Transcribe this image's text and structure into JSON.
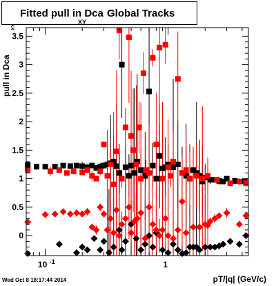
{
  "title": {
    "main": "Fitted pull in Dca",
    "sub": "XY",
    "rest": "Global Tracks"
  },
  "ylabel": {
    "main": "pull in Dca",
    "sub": "XY"
  },
  "xlabel": "pT/|q| (GeV/c)",
  "datestamp": "Wed Oct  8 18:17:44 2014",
  "chart_data": {
    "type": "scatter",
    "xscale": "log",
    "xlim": [
      0.07,
      4.5
    ],
    "ylim": [
      -0.35,
      3.65
    ],
    "x_tick_labels": [
      {
        "value": 0.1,
        "label": "10",
        "exp": "-1"
      },
      {
        "value": 1,
        "label": "1"
      }
    ],
    "y_ticks": [
      0,
      0.5,
      1,
      1.5,
      2,
      2.5,
      3,
      3.5
    ],
    "y_tick_labels": [
      "0",
      "0.5",
      "1",
      "1.5",
      "2",
      "2.5",
      "3",
      "3.5"
    ],
    "colors": {
      "series_black": "#000000",
      "series_red": "#ff0000"
    },
    "series": [
      {
        "marker": "square",
        "color": "black",
        "points": [
          [
            0.072,
            1.24
          ],
          [
            0.085,
            1.21
          ],
          [
            0.1,
            1.21
          ],
          [
            0.12,
            1.21
          ],
          [
            0.14,
            1.23
          ],
          [
            0.16,
            1.22
          ],
          [
            0.18,
            1.23
          ],
          [
            0.2,
            1.22
          ],
          [
            0.22,
            1.2
          ],
          [
            0.24,
            1.23
          ],
          [
            0.26,
            1.19
          ],
          [
            0.28,
            1.21
          ],
          [
            0.3,
            1.23
          ],
          [
            0.32,
            1.25
          ],
          [
            0.34,
            1.27
          ],
          [
            0.36,
            1.3
          ],
          [
            0.38,
            1.22
          ],
          [
            0.4,
            1.1
          ],
          [
            0.42,
            3.0
          ],
          [
            0.45,
            1.2
          ],
          [
            0.48,
            1.05
          ],
          [
            0.5,
            1.23
          ],
          [
            0.53,
            1.1
          ],
          [
            0.56,
            1.3
          ],
          [
            0.6,
            1.15
          ],
          [
            0.65,
            1.05
          ],
          [
            0.7,
            2.53
          ],
          [
            0.75,
            1.23
          ],
          [
            0.8,
            1.0
          ],
          [
            0.85,
            1.4
          ],
          [
            0.9,
            1.18
          ],
          [
            0.95,
            1.2
          ],
          [
            1.0,
            1.25
          ],
          [
            1.1,
            1.2
          ],
          [
            1.2,
            1.25
          ],
          [
            1.3,
            1.1
          ],
          [
            1.4,
            1.05
          ],
          [
            1.5,
            1.0
          ],
          [
            1.6,
            1.15
          ],
          [
            1.7,
            1.1
          ],
          [
            1.8,
            1.05
          ],
          [
            1.9,
            0.95
          ],
          [
            2.0,
            1.02
          ],
          [
            2.2,
            0.98
          ],
          [
            2.4,
            0.98
          ],
          [
            2.6,
            0.96
          ],
          [
            2.8,
            0.95
          ],
          [
            3.0,
            1.0
          ],
          [
            3.5,
            0.96
          ],
          [
            4.2,
            0.95
          ]
        ]
      },
      {
        "marker": "diamond",
        "color": "black",
        "points": [
          [
            0.072,
            -0.35
          ],
          [
            0.13,
            -0.15
          ],
          [
            0.18,
            -0.3
          ],
          [
            0.2,
            -0.2
          ],
          [
            0.22,
            -0.25
          ],
          [
            0.25,
            -0.05
          ],
          [
            0.28,
            -0.25
          ],
          [
            0.3,
            -0.1
          ],
          [
            0.33,
            -0.3
          ],
          [
            0.36,
            -0.2
          ],
          [
            0.4,
            0.1
          ],
          [
            0.42,
            -0.25
          ],
          [
            0.45,
            -0.1
          ],
          [
            0.5,
            0.2
          ],
          [
            0.55,
            -0.05
          ],
          [
            0.6,
            -0.25
          ],
          [
            0.65,
            -0.15
          ],
          [
            0.7,
            0.0
          ],
          [
            0.75,
            -0.2
          ],
          [
            0.8,
            0.05
          ],
          [
            0.9,
            -0.25
          ],
          [
            1.0,
            -0.3
          ],
          [
            1.1,
            -0.15
          ],
          [
            1.2,
            -0.25
          ],
          [
            1.3,
            -0.35
          ],
          [
            1.4,
            -0.3
          ],
          [
            1.5,
            -0.2
          ],
          [
            1.6,
            -0.2
          ],
          [
            1.7,
            -0.2
          ],
          [
            1.8,
            -0.25
          ],
          [
            2.0,
            -0.2
          ],
          [
            2.2,
            -0.2
          ],
          [
            2.4,
            -0.2
          ],
          [
            2.6,
            -0.18
          ],
          [
            2.8,
            -0.15
          ],
          [
            3.2,
            -0.1
          ],
          [
            3.8,
            -0.15
          ],
          [
            4.3,
            0.0
          ]
        ]
      },
      {
        "marker": "square",
        "color": "red",
        "points": [
          [
            0.072,
            1.15
          ],
          [
            0.11,
            1.13
          ],
          [
            0.13,
            1.15
          ],
          [
            0.15,
            1.1
          ],
          [
            0.17,
            1.13
          ],
          [
            0.2,
            1.11
          ],
          [
            0.22,
            1.15
          ],
          [
            0.24,
            1.05
          ],
          [
            0.26,
            1.0
          ],
          [
            0.28,
            1.13
          ],
          [
            0.3,
            1.6
          ],
          [
            0.32,
            1.05
          ],
          [
            0.34,
            1.25
          ],
          [
            0.36,
            0.9
          ],
          [
            0.38,
            1.48
          ],
          [
            0.4,
            3.6
          ],
          [
            0.42,
            1.0
          ],
          [
            0.45,
            1.9
          ],
          [
            0.48,
            3.48
          ],
          [
            0.5,
            1.75
          ],
          [
            0.52,
            1.5
          ],
          [
            0.55,
            1.25
          ],
          [
            0.58,
            1.9
          ],
          [
            0.6,
            1.0
          ],
          [
            0.63,
            2.85
          ],
          [
            0.66,
            1.15
          ],
          [
            0.7,
            1.1
          ],
          [
            0.75,
            3.12
          ],
          [
            0.8,
            1.6
          ],
          [
            0.85,
            3.3
          ],
          [
            0.9,
            1.0
          ],
          [
            0.95,
            3.35
          ],
          [
            1.0,
            1.2
          ],
          [
            1.05,
            1.05
          ],
          [
            1.1,
            1.3
          ],
          [
            1.2,
            2.75
          ],
          [
            1.3,
            1.1
          ],
          [
            1.4,
            1.15
          ],
          [
            1.5,
            1.0
          ],
          [
            1.7,
            1.05
          ],
          [
            1.9,
            1.0
          ],
          [
            2.1,
            1.05
          ],
          [
            2.5,
            0.98
          ],
          [
            3.2,
            0.92
          ],
          [
            3.8,
            0.95
          ],
          [
            4.3,
            0.92
          ]
        ]
      },
      {
        "marker": "diamond",
        "color": "red",
        "points": [
          [
            0.072,
            0.24
          ],
          [
            0.1,
            0.37
          ],
          [
            0.12,
            0.38
          ],
          [
            0.14,
            0.42
          ],
          [
            0.16,
            0.38
          ],
          [
            0.18,
            0.4
          ],
          [
            0.2,
            0.38
          ],
          [
            0.22,
            0.42
          ],
          [
            0.24,
            0.15
          ],
          [
            0.26,
            0.1
          ],
          [
            0.28,
            0.5
          ],
          [
            0.3,
            0.38
          ],
          [
            0.32,
            0.1
          ],
          [
            0.34,
            0.3
          ],
          [
            0.36,
            0.05
          ],
          [
            0.38,
            0.45
          ],
          [
            0.4,
            0.0
          ],
          [
            0.42,
            0.2
          ],
          [
            0.45,
            0.3
          ],
          [
            0.48,
            0.5
          ],
          [
            0.5,
            0.05
          ],
          [
            0.53,
            0.25
          ],
          [
            0.56,
            0.3
          ],
          [
            0.6,
            0.4
          ],
          [
            0.65,
            -0.05
          ],
          [
            0.7,
            0.5
          ],
          [
            0.75,
            0.2
          ],
          [
            0.8,
            0.1
          ],
          [
            0.85,
            0.0
          ],
          [
            0.9,
            0.1
          ],
          [
            0.95,
            0.3
          ],
          [
            1.0,
            0.0
          ],
          [
            1.1,
            -0.05
          ],
          [
            1.2,
            0.1
          ],
          [
            1.3,
            0.6
          ],
          [
            1.4,
            0.05
          ],
          [
            1.6,
            0.15
          ],
          [
            1.8,
            0.15
          ],
          [
            2.0,
            0.2
          ],
          [
            2.1,
            0.18
          ],
          [
            2.2,
            0.25
          ],
          [
            2.4,
            0.3
          ],
          [
            2.6,
            0.35
          ],
          [
            3.0,
            0.4
          ],
          [
            3.8,
            0.2
          ],
          [
            4.3,
            0.35
          ]
        ]
      }
    ]
  }
}
